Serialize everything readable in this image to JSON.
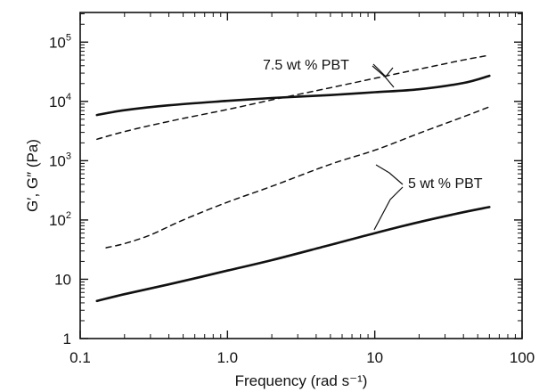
{
  "chart_data": {
    "type": "line",
    "title": "",
    "xlabel": "Frequency (rad s⁻¹)",
    "ylabel": "G′, G″ (Pa)",
    "xscale": "log",
    "yscale": "log",
    "xlim": [
      0.1,
      100
    ],
    "ylim": [
      1,
      316228
    ],
    "grid": false,
    "x_ticks": [
      {
        "value": 0.1,
        "label": "0.1"
      },
      {
        "value": 1,
        "label": "1.0"
      },
      {
        "value": 10,
        "label": "10"
      },
      {
        "value": 100,
        "label": "100"
      }
    ],
    "y_ticks": [
      {
        "value": 1,
        "base": "1",
        "exp": ""
      },
      {
        "value": 10,
        "base": "10",
        "exp": ""
      },
      {
        "value": 100,
        "base": "10",
        "exp": "2"
      },
      {
        "value": 1000,
        "base": "10",
        "exp": "3"
      },
      {
        "value": 10000,
        "base": "10",
        "exp": "4"
      },
      {
        "value": 100000,
        "base": "10",
        "exp": "5"
      }
    ],
    "series": [
      {
        "group": "7.5 wt % PBT",
        "modulus": "G′",
        "style": "solid",
        "x": [
          0.13,
          0.2,
          0.4,
          1.0,
          2.0,
          5.0,
          10,
          20,
          40,
          60
        ],
        "y": [
          5900,
          7100,
          8600,
          10200,
          11400,
          12800,
          14300,
          16000,
          20500,
          27000
        ]
      },
      {
        "group": "7.5 wt % PBT",
        "modulus": "G″",
        "style": "dashed",
        "x": [
          0.13,
          0.2,
          0.4,
          1.0,
          2.0,
          5.0,
          10,
          20,
          40,
          60
        ],
        "y": [
          2300,
          3100,
          4600,
          7300,
          10600,
          17000,
          24500,
          35000,
          50000,
          60000
        ]
      },
      {
        "group": "5 wt % PBT",
        "modulus": "G′",
        "style": "solid",
        "x": [
          0.13,
          0.2,
          0.4,
          1.0,
          2.0,
          5.0,
          10,
          20,
          40,
          60
        ],
        "y": [
          4.3,
          5.6,
          8.2,
          14,
          21,
          38,
          60,
          92,
          135,
          165
        ]
      },
      {
        "group": "5 wt % PBT",
        "modulus": "G″",
        "style": "dashed",
        "x": [
          0.15,
          0.2,
          0.3,
          0.5,
          1.0,
          2.0,
          5.0,
          10,
          20,
          40,
          60
        ],
        "y": [
          34,
          40,
          56,
          100,
          200,
          370,
          870,
          1500,
          2900,
          5500,
          8100
        ]
      }
    ],
    "annotations": [
      {
        "text": "7.5 wt % PBT",
        "group": "7.5 wt % PBT"
      },
      {
        "text": "5 wt % PBT",
        "group": "5 wt % PBT"
      }
    ]
  }
}
